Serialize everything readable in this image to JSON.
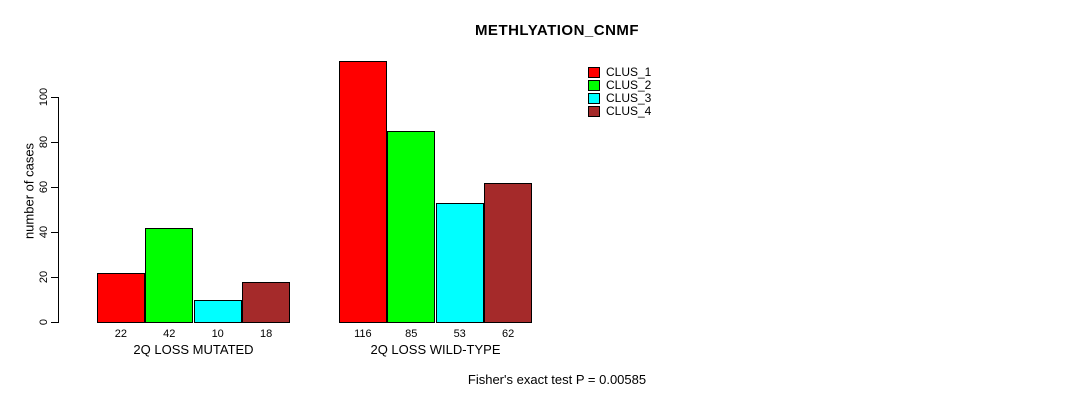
{
  "chart_data": {
    "type": "bar",
    "title": "METHLYATION_CNMF",
    "xlabel": "",
    "ylabel": "number of cases",
    "categories": [
      "2Q LOSS MUTATED",
      "2Q LOSS WILD-TYPE"
    ],
    "series": [
      {
        "name": "CLUS_1",
        "color": "#FF0000",
        "values": [
          22,
          116
        ]
      },
      {
        "name": "CLUS_2",
        "color": "#00FF00",
        "values": [
          42,
          85
        ]
      },
      {
        "name": "CLUS_3",
        "color": "#00FFFF",
        "values": [
          10,
          53
        ]
      },
      {
        "name": "CLUS_4",
        "color": "#A52A2A",
        "values": [
          18,
          62
        ]
      }
    ],
    "yticks": [
      0,
      20,
      40,
      60,
      80,
      100
    ],
    "ylim": [
      0,
      120
    ],
    "grid": false,
    "legend_position": "top-right",
    "bar_value_labels": true,
    "annotation": "Fisher's exact test P = 0.00585"
  },
  "colors": {
    "background": "#FFFFFF",
    "axis": "#000000",
    "text": "#000000"
  }
}
